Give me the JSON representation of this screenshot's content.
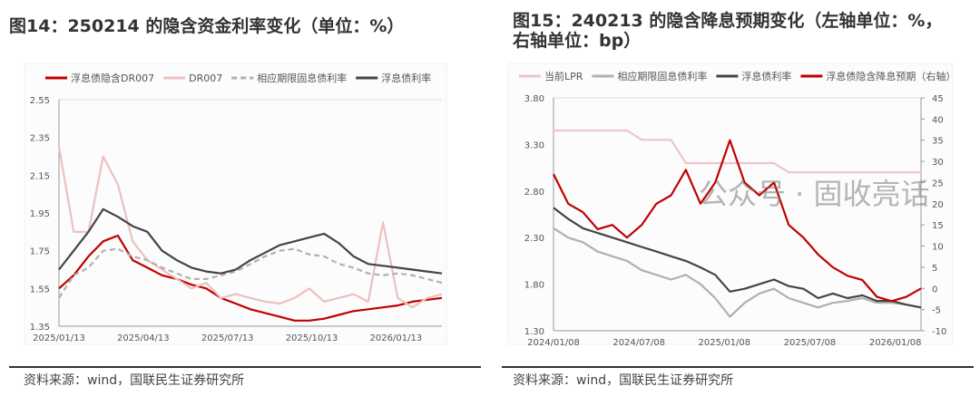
{
  "left": {
    "title": "图14：250214 的隐含资金利率变化（单位：%）",
    "source": "资料来源：wind，国联民生证券研究所"
  },
  "right": {
    "title_line1": "图15：240213 的隐含降息预期变化（左轴单位：%，",
    "title_line2": "右轴单位：bp）",
    "source": "资料来源：wind，国联民生证券研究所"
  },
  "watermark": "公众号 · 固收亮话",
  "chart_data": [
    {
      "type": "line",
      "ylim": [
        1.35,
        2.55
      ],
      "yticks": [
        "2.55",
        "2.35",
        "2.15",
        "1.95",
        "1.75",
        "1.55",
        "1.35"
      ],
      "xticks": [
        "2025/01/13",
        "2025/04/13",
        "2025/07/13",
        "2025/10/13",
        "2026/01/13"
      ],
      "x": [
        "2025/01/13",
        "2025/02/01",
        "2025/02/15",
        "2025/03/01",
        "2025/03/15",
        "2025/04/01",
        "2025/04/15",
        "2025/05/01",
        "2025/05/15",
        "2025/06/01",
        "2025/06/15",
        "2025/07/01",
        "2025/07/15",
        "2025/08/01",
        "2025/08/15",
        "2025/09/01",
        "2025/09/15",
        "2025/10/01",
        "2025/10/15",
        "2025/11/01",
        "2025/11/15",
        "2025/12/01",
        "2025/12/15",
        "2026/01/01",
        "2026/01/15",
        "2026/02/01",
        "2026/02/25"
      ],
      "series": [
        {
          "name": "浮息债隐含DR007",
          "color": "#c00000",
          "dash": false,
          "values": [
            1.55,
            1.62,
            1.72,
            1.8,
            1.83,
            1.7,
            1.66,
            1.62,
            1.6,
            1.57,
            1.55,
            1.5,
            1.47,
            1.44,
            1.42,
            1.4,
            1.38,
            1.38,
            1.39,
            1.41,
            1.43,
            1.44,
            1.45,
            1.46,
            1.48,
            1.49,
            1.5
          ]
        },
        {
          "name": "DR007",
          "color": "#eec0c0",
          "dash": false,
          "values": [
            2.3,
            1.85,
            1.85,
            2.25,
            2.1,
            1.8,
            1.7,
            1.65,
            1.6,
            1.55,
            1.58,
            1.5,
            1.52,
            1.5,
            1.48,
            1.47,
            1.5,
            1.55,
            1.48,
            1.5,
            1.52,
            1.48,
            1.9,
            1.5,
            1.45,
            1.5,
            1.52
          ]
        },
        {
          "name": "相应期限固息债利率",
          "color": "#b0b0b0",
          "dash": true,
          "values": [
            1.5,
            1.62,
            1.66,
            1.75,
            1.76,
            1.72,
            1.7,
            1.66,
            1.63,
            1.6,
            1.6,
            1.62,
            1.64,
            1.68,
            1.72,
            1.75,
            1.76,
            1.73,
            1.72,
            1.68,
            1.66,
            1.63,
            1.62,
            1.63,
            1.62,
            1.6,
            1.58
          ]
        },
        {
          "name": "浮息债利率",
          "color": "#444444",
          "dash": false,
          "values": [
            1.65,
            1.75,
            1.85,
            1.97,
            1.93,
            1.88,
            1.85,
            1.75,
            1.7,
            1.66,
            1.64,
            1.63,
            1.65,
            1.7,
            1.74,
            1.78,
            1.8,
            1.82,
            1.84,
            1.79,
            1.72,
            1.68,
            1.67,
            1.66,
            1.65,
            1.64,
            1.63
          ]
        }
      ]
    },
    {
      "type": "line",
      "ylim": [
        1.3,
        3.8
      ],
      "y2lim": [
        -10,
        45
      ],
      "yticks": [
        "3.80",
        "3.30",
        "2.80",
        "2.30",
        "1.80",
        "1.30"
      ],
      "y2ticks": [
        "45",
        "40",
        "35",
        "30",
        "25",
        "20",
        "15",
        "10",
        "5",
        "0",
        "-5",
        "-10"
      ],
      "xticks": [
        "2024/01/08",
        "2024/07/08",
        "2025/01/08",
        "2025/07/08",
        "2026/01/08"
      ],
      "x": [
        "2024/01",
        "2024/02",
        "2024/03",
        "2024/04",
        "2024/05",
        "2024/06",
        "2024/07",
        "2024/08",
        "2024/09",
        "2024/10",
        "2024/11",
        "2024/12",
        "2025/01",
        "2025/02",
        "2025/03",
        "2025/04",
        "2025/05",
        "2025/06",
        "2025/07",
        "2025/08",
        "2025/09",
        "2025/10",
        "2025/11",
        "2025/12",
        "2026/01",
        "2026/02"
      ],
      "series": [
        {
          "name": "当前LPR",
          "color": "#f0c4c8",
          "axis": "left",
          "values": [
            3.45,
            3.45,
            3.45,
            3.45,
            3.45,
            3.45,
            3.35,
            3.35,
            3.35,
            3.1,
            3.1,
            3.1,
            3.1,
            3.1,
            3.1,
            3.1,
            3.0,
            3.0,
            3.0,
            3.0,
            3.0,
            3.0,
            3.0,
            3.0,
            3.0,
            3.0
          ]
        },
        {
          "name": "相应期限固息债利率",
          "color": "#b0b0b0",
          "axis": "left",
          "values": [
            2.4,
            2.3,
            2.25,
            2.15,
            2.1,
            2.05,
            1.95,
            1.9,
            1.85,
            1.9,
            1.8,
            1.65,
            1.45,
            1.6,
            1.7,
            1.75,
            1.65,
            1.6,
            1.55,
            1.6,
            1.62,
            1.65,
            1.6,
            1.6,
            1.58,
            1.55
          ]
        },
        {
          "name": "浮息债利率",
          "color": "#444444",
          "axis": "left",
          "values": [
            2.62,
            2.5,
            2.4,
            2.35,
            2.3,
            2.25,
            2.2,
            2.15,
            2.1,
            2.05,
            1.98,
            1.9,
            1.72,
            1.75,
            1.8,
            1.85,
            1.78,
            1.75,
            1.65,
            1.7,
            1.65,
            1.68,
            1.62,
            1.62,
            1.58,
            1.55
          ]
        },
        {
          "name": "浮息债隐含降息预期（右轴）",
          "color": "#c00000",
          "axis": "right",
          "values": [
            27,
            20,
            18,
            14,
            15,
            12,
            15,
            20,
            22,
            28,
            20,
            25,
            35,
            25,
            22,
            25,
            15,
            12,
            8,
            5,
            3,
            2,
            -2,
            -3,
            -2,
            0
          ]
        }
      ]
    }
  ]
}
